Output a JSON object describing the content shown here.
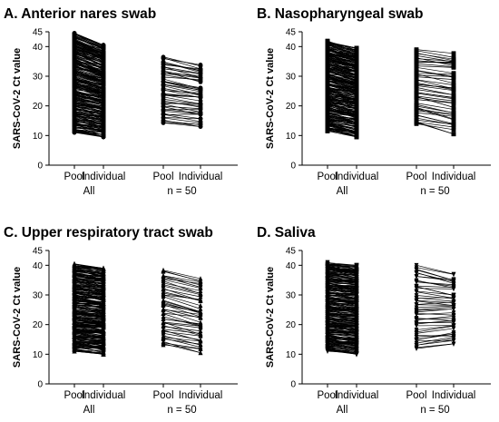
{
  "chart_data": [
    {
      "type": "line",
      "title": "A. Anterior nares swab",
      "ylabel": "SARS-CoV-2 Ct value",
      "ylim": [
        0,
        45
      ],
      "yticks": [
        0,
        10,
        20,
        30,
        40,
        45
      ],
      "x_categories": [
        "Pool",
        "Individual",
        "Pool",
        "Individual"
      ],
      "groups": [
        "All",
        "n = 50"
      ],
      "marker": "circle",
      "series": [
        {
          "group": "All",
          "pool_range": [
            11,
            44.5
          ],
          "individual_range": [
            9.5,
            40.5
          ],
          "pairs": 300
        },
        {
          "group": "n = 50",
          "pool_range": [
            14,
            36.5
          ],
          "individual_range": [
            13,
            34
          ],
          "pairs": 50
        }
      ]
    },
    {
      "type": "line",
      "title": "B. Nasopharyngeal swab",
      "ylabel": "SARS-CoV-2 Ct value",
      "ylim": [
        0,
        45
      ],
      "yticks": [
        0,
        10,
        20,
        30,
        40,
        45
      ],
      "x_categories": [
        "Pool",
        "Individual",
        "Pool",
        "Individual"
      ],
      "groups": [
        "All",
        "n = 50"
      ],
      "marker": "square",
      "series": [
        {
          "group": "All",
          "pool_range": [
            11.5,
            42
          ],
          "individual_range": [
            9.5,
            39.5
          ],
          "pairs": 300
        },
        {
          "group": "n = 50",
          "pool_range": [
            13.5,
            39
          ],
          "individual_range": [
            10.5,
            38
          ],
          "pairs": 50
        }
      ]
    },
    {
      "type": "line",
      "title": "C.  Upper respiratory tract swab",
      "ylabel": "SARS-CoV-2 Ct value",
      "ylim": [
        0,
        45
      ],
      "yticks": [
        0,
        10,
        20,
        30,
        40,
        45
      ],
      "x_categories": [
        "Pool",
        "Individual",
        "Pool",
        "Individual"
      ],
      "groups": [
        "All",
        "n = 50"
      ],
      "marker": "triangle-up",
      "series": [
        {
          "group": "All",
          "pool_range": [
            11,
            40.5
          ],
          "individual_range": [
            10,
            39
          ],
          "pairs": 300
        },
        {
          "group": "n = 50",
          "pool_range": [
            13,
            38.5
          ],
          "individual_range": [
            10.5,
            35.5
          ],
          "pairs": 50
        }
      ]
    },
    {
      "type": "line",
      "title": "D. Saliva",
      "ylabel": "SARS-CoV-2 Ct value",
      "ylim": [
        0,
        45
      ],
      "yticks": [
        0,
        10,
        20,
        30,
        40,
        45
      ],
      "x_categories": [
        "Pool",
        "Individual",
        "Pool",
        "Individual"
      ],
      "groups": [
        "All",
        "n = 50"
      ],
      "marker": "triangle-down",
      "series": [
        {
          "group": "All",
          "pool_range": [
            11,
            41
          ],
          "individual_range": [
            10,
            40
          ],
          "pairs": 300
        },
        {
          "group": "n = 50",
          "pool_range": [
            11.5,
            40
          ],
          "individual_range": [
            13.5,
            37
          ],
          "pairs": 50
        }
      ]
    }
  ]
}
